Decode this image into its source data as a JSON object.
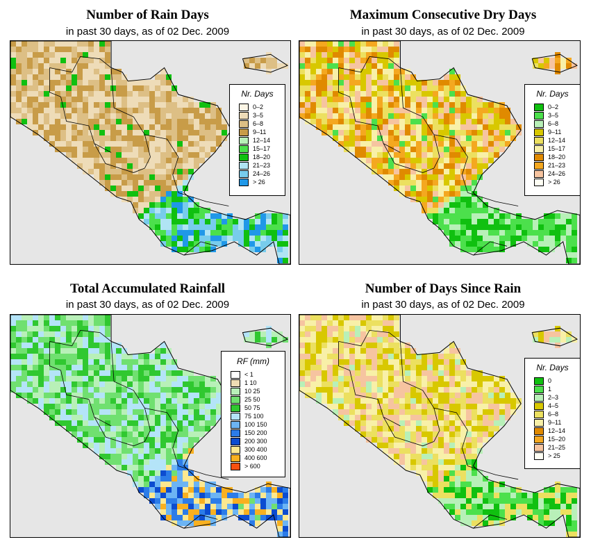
{
  "panels": [
    {
      "title": "Number of Rain Days",
      "subtitle": "in past 30 days, as of  02 Dec. 2009",
      "legend_title": "Nr. Days",
      "legend": [
        {
          "label": "0–2",
          "color": "#fdf6e6"
        },
        {
          "label": "3–5",
          "color": "#eedcb8"
        },
        {
          "label": "6–8",
          "color": "#ddbf85"
        },
        {
          "label": "9–11",
          "color": "#c89c48"
        },
        {
          "label": "12–14",
          "color": "#b8f0b8"
        },
        {
          "label": "15–17",
          "color": "#4ce04c"
        },
        {
          "label": "18–20",
          "color": "#10c010"
        },
        {
          "label": "21–23",
          "color": "#b0e4f4"
        },
        {
          "label": "24–26",
          "color": "#78ccec"
        },
        {
          "label": "> 26",
          "color": "#2098e8"
        }
      ],
      "pattern": {
        "north": [
          1,
          2,
          3
        ],
        "south": [
          5,
          6,
          7,
          8,
          9
        ],
        "dots": 6
      }
    },
    {
      "title": "Maximum Consecutive Dry Days",
      "subtitle": "in past 30 days, as of  02 Dec. 2009",
      "legend_title": "Nr. Days",
      "legend": [
        {
          "label": "0–2",
          "color": "#10c010"
        },
        {
          "label": "3–5",
          "color": "#4ce04c"
        },
        {
          "label": "6–8",
          "color": "#b8f0b8"
        },
        {
          "label": "9–11",
          "color": "#d8c800"
        },
        {
          "label": "12–14",
          "color": "#ece060"
        },
        {
          "label": "15–17",
          "color": "#f8f0a8"
        },
        {
          "label": "18–20",
          "color": "#e08a00"
        },
        {
          "label": "21–23",
          "color": "#f4a820"
        },
        {
          "label": "24–26",
          "color": "#f6c4a0"
        },
        {
          "label": "> 26",
          "color": "#fffff4"
        }
      ],
      "pattern": {
        "north": [
          3,
          4,
          5,
          6,
          7,
          8
        ],
        "south": [
          0,
          1,
          2
        ],
        "dots": 1
      }
    },
    {
      "title": "Total Accumulated Rainfall",
      "subtitle": "in past 30 days, as of  02 Dec. 2009",
      "legend_title": "RF (mm)",
      "legend": [
        {
          "label": "< 1",
          "color": "#ffffff"
        },
        {
          "label": "1   10",
          "color": "#f0dcb4"
        },
        {
          "label": "10   25",
          "color": "#b8f0b8"
        },
        {
          "label": "25   50",
          "color": "#70e070"
        },
        {
          "label": "50   75",
          "color": "#30c830"
        },
        {
          "label": "75   100",
          "color": "#b4e4f8"
        },
        {
          "label": "100   150",
          "color": "#6cb4f4"
        },
        {
          "label": "150   200",
          "color": "#2c7ce8"
        },
        {
          "label": "200   300",
          "color": "#0c4cd0"
        },
        {
          "label": "300   400",
          "color": "#fce890"
        },
        {
          "label": "400   600",
          "color": "#f8b020"
        },
        {
          "label": "> 600",
          "color": "#f85010"
        }
      ],
      "pattern": {
        "north": [
          2,
          3,
          4,
          5
        ],
        "south": [
          6,
          7,
          8,
          9,
          10
        ],
        "dots": 3
      }
    },
    {
      "title": "Number of Days Since Rain",
      "subtitle": "in past 30 days, as of  02 Dec. 2009",
      "legend_title": "Nr. Days",
      "legend": [
        {
          "label": "0",
          "color": "#10c010"
        },
        {
          "label": "1",
          "color": "#4ce04c"
        },
        {
          "label": "2–3",
          "color": "#b8f0b8"
        },
        {
          "label": "4–5",
          "color": "#d8c800"
        },
        {
          "label": "6–8",
          "color": "#ece060"
        },
        {
          "label": "9–11",
          "color": "#f8f0a8"
        },
        {
          "label": "12–14",
          "color": "#e08a00"
        },
        {
          "label": "15–20",
          "color": "#f4a820"
        },
        {
          "label": "21–25",
          "color": "#f6c4a0"
        },
        {
          "label": "> 25",
          "color": "#fffff4"
        }
      ],
      "pattern": {
        "north": [
          8,
          3,
          4,
          5
        ],
        "south": [
          2,
          1,
          0,
          4
        ],
        "dots": 2
      }
    }
  ]
}
